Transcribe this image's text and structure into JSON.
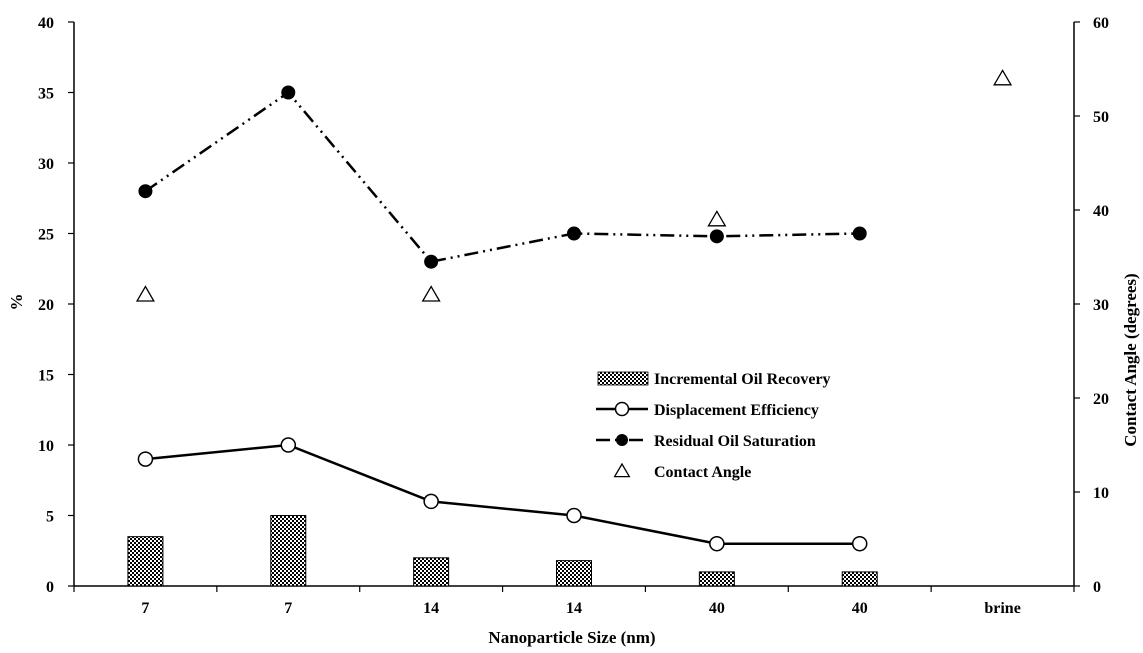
{
  "chart_data": {
    "type": "bar",
    "xlabel": "Nanoparticle Size (nm)",
    "ylabel": "%",
    "y2label": "Contact Angle (degrees)",
    "categories": [
      "7",
      "7",
      "14",
      "14",
      "40",
      "40",
      "brine"
    ],
    "ylim": [
      0,
      40
    ],
    "yticks": [
      0,
      5,
      10,
      15,
      20,
      25,
      30,
      35,
      40
    ],
    "y2lim": [
      0,
      60
    ],
    "y2ticks": [
      0,
      10,
      20,
      30,
      40,
      50,
      60
    ],
    "grid": false,
    "legend_position": "center-right",
    "series": [
      {
        "name": "Incremental Oil Recovery",
        "kind": "bar",
        "axis": "left",
        "color": "#000000",
        "values": [
          3.5,
          5.0,
          2.0,
          1.8,
          1.0,
          1.0,
          null
        ]
      },
      {
        "name": "Displacement Efficiency",
        "kind": "line",
        "style": "solid",
        "marker": "open-circle",
        "axis": "left",
        "color": "#000000",
        "values": [
          9.0,
          10.0,
          6.0,
          5.0,
          3.0,
          3.0,
          null
        ]
      },
      {
        "name": "Residual Oil Saturation",
        "kind": "line",
        "style": "dash-dot-dot",
        "marker": "filled-circle",
        "axis": "left",
        "color": "#000000",
        "values": [
          28.0,
          35.0,
          23.0,
          25.0,
          24.8,
          25.0,
          null
        ]
      },
      {
        "name": "Contact Angle",
        "kind": "scatter",
        "marker": "open-triangle",
        "axis": "right",
        "color": "#000000",
        "values": [
          31.0,
          null,
          31.0,
          null,
          39.0,
          null,
          54.0
        ]
      }
    ]
  }
}
